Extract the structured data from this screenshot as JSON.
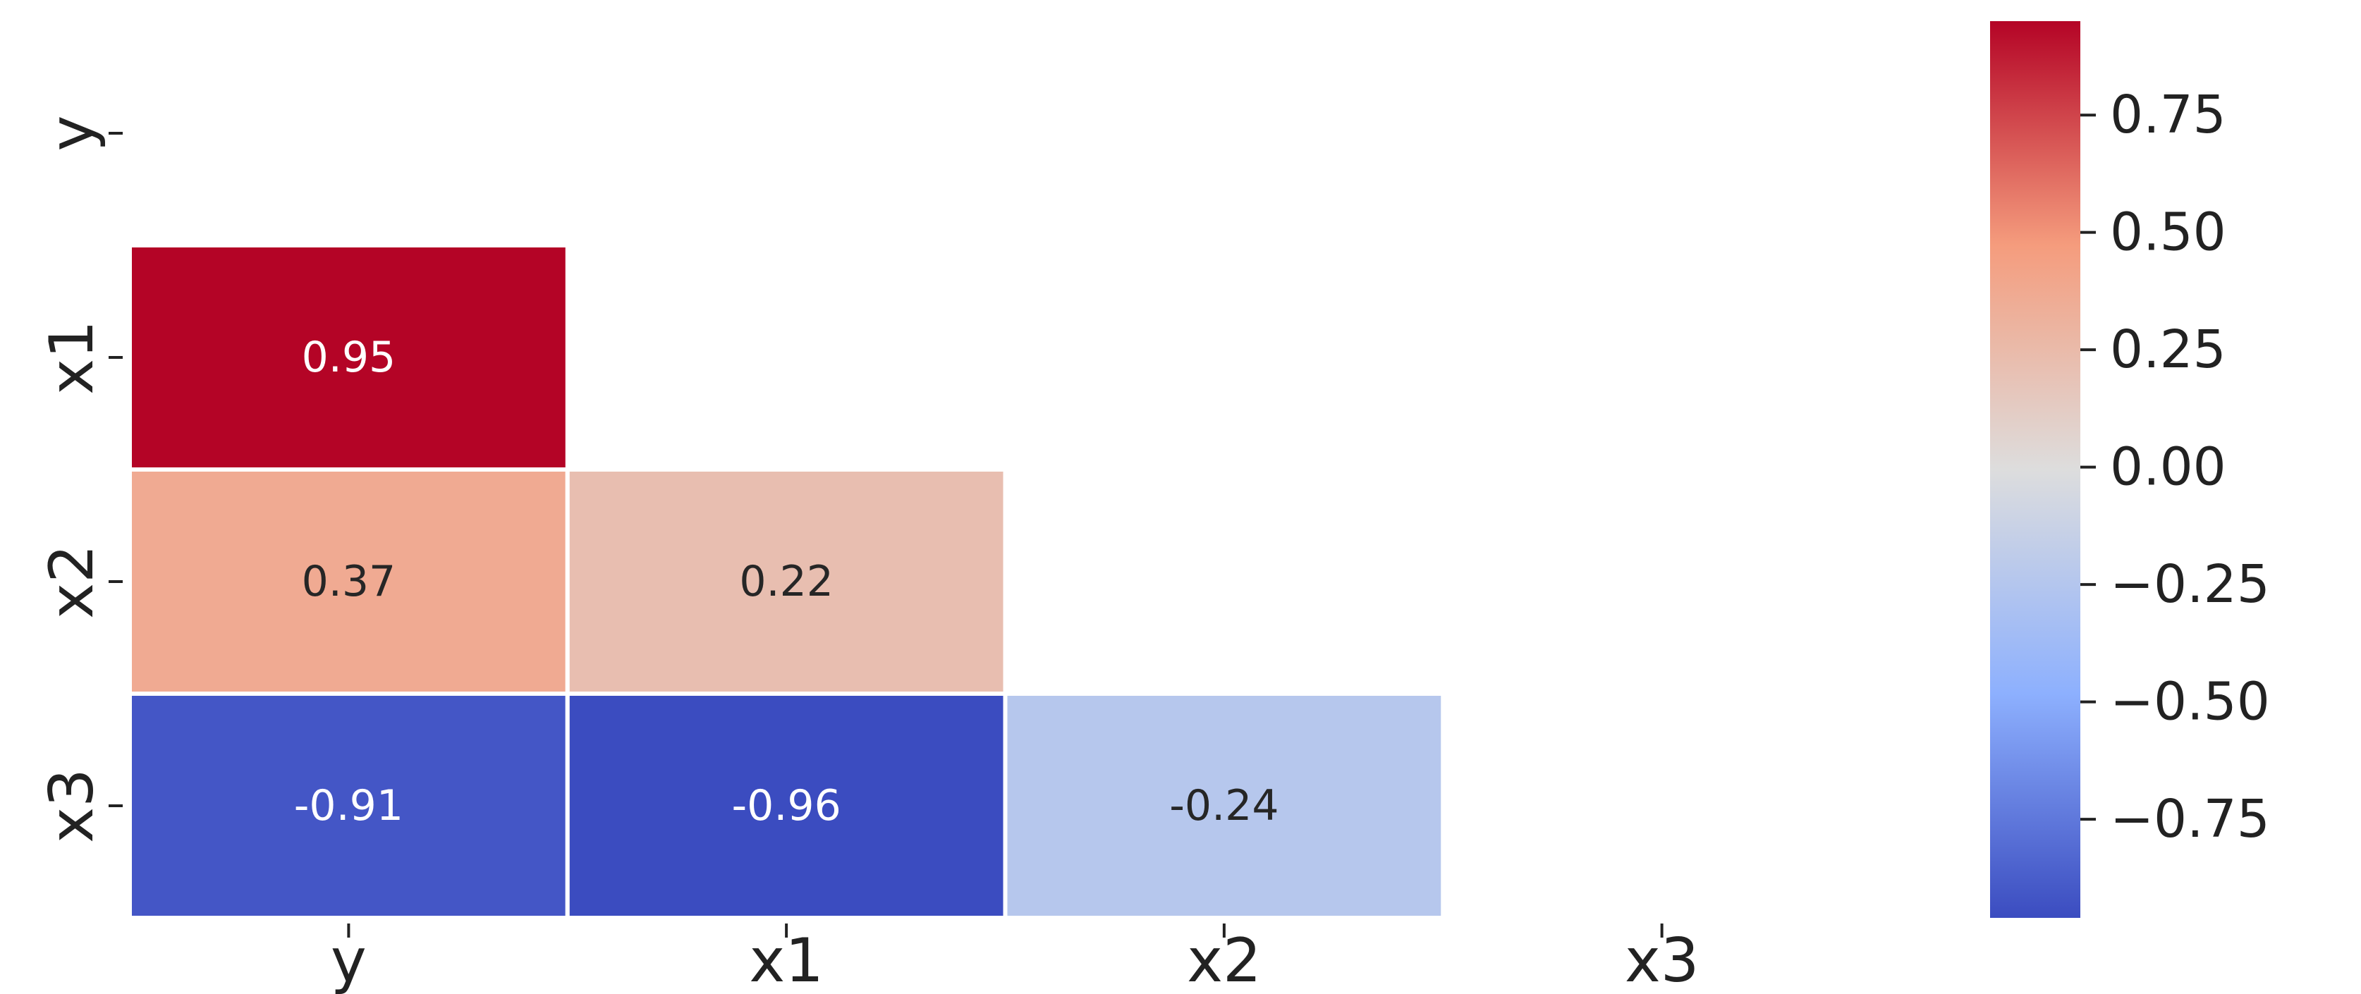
{
  "chart_data": {
    "type": "heatmap",
    "variables": [
      "y",
      "x1",
      "x2",
      "x3"
    ],
    "mask": "upper-triangle-including-diagonal",
    "cells": [
      {
        "row": "x1",
        "col": "y",
        "value": 0.95,
        "label": "0.95"
      },
      {
        "row": "x2",
        "col": "y",
        "value": 0.37,
        "label": "0.37"
      },
      {
        "row": "x2",
        "col": "x1",
        "value": 0.22,
        "label": "0.22"
      },
      {
        "row": "x3",
        "col": "y",
        "value": -0.91,
        "label": "-0.91"
      },
      {
        "row": "x3",
        "col": "x1",
        "value": -0.96,
        "label": "-0.96"
      },
      {
        "row": "x3",
        "col": "x2",
        "value": -0.24,
        "label": "-0.24"
      }
    ],
    "colormap": "coolwarm",
    "colorbar": {
      "range": [
        -0.96,
        0.95
      ],
      "ticks": [
        0.75,
        0.5,
        0.25,
        0.0,
        -0.25,
        -0.5,
        -0.75
      ],
      "tick_labels": [
        "0.75",
        "0.50",
        "0.25",
        "0.00",
        "−0.25",
        "−0.50",
        "−0.75"
      ],
      "placement": "right"
    },
    "title": "",
    "xlabel": "",
    "ylabel": ""
  }
}
